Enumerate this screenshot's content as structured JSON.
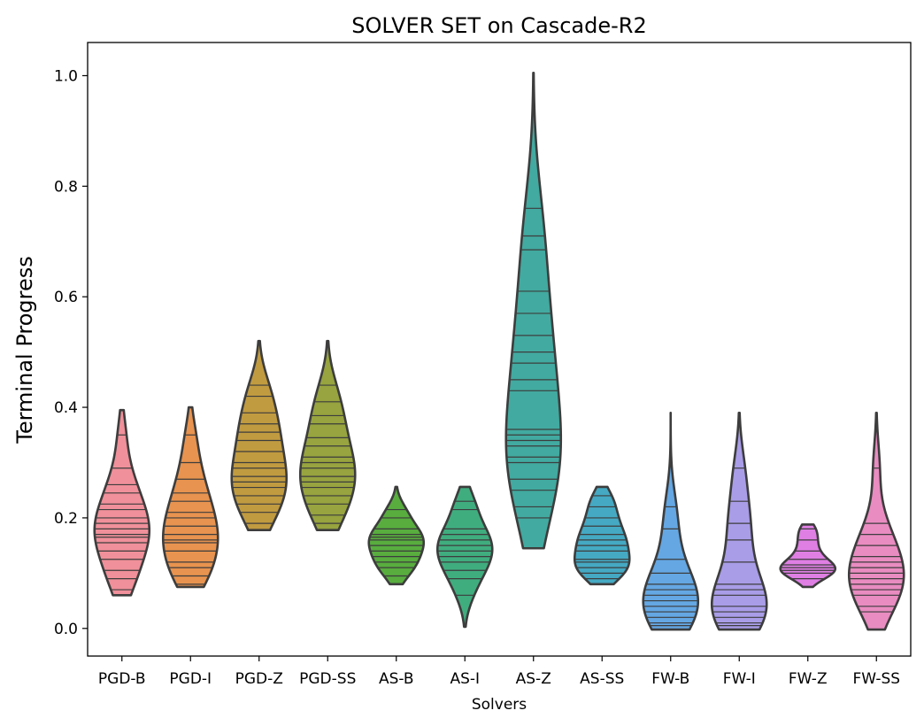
{
  "chart_data": {
    "type": "violin",
    "title": "SOLVER SET on Cascade-R2",
    "xlabel": "Solvers",
    "ylabel": "Terminal Progress",
    "ylim": [
      -0.05,
      1.06
    ],
    "yticks": [
      "0.0",
      "0.2",
      "0.4",
      "0.6",
      "0.8",
      "1.0"
    ],
    "inner": "stick",
    "categories": [
      "PGD-B",
      "PGD-I",
      "PGD-Z",
      "PGD-SS",
      "AS-B",
      "AS-I",
      "AS-Z",
      "AS-SS",
      "FW-B",
      "FW-I",
      "FW-Z",
      "FW-SS"
    ],
    "series": [
      {
        "color": "#f0909a",
        "range": [
          0.06,
          0.395
        ],
        "sticks": [
          0.07,
          0.09,
          0.105,
          0.125,
          0.14,
          0.155,
          0.165,
          0.17,
          0.18,
          0.19,
          0.2,
          0.215,
          0.225,
          0.245,
          0.26,
          0.29,
          0.35
        ]
      },
      {
        "color": "#e8934f",
        "range": [
          0.075,
          0.4
        ],
        "sticks": [
          0.08,
          0.095,
          0.11,
          0.12,
          0.14,
          0.155,
          0.16,
          0.17,
          0.185,
          0.2,
          0.21,
          0.23,
          0.245,
          0.27,
          0.3,
          0.35
        ]
      },
      {
        "color": "#c19b40",
        "range": [
          0.178,
          0.52
        ],
        "sticks": [
          0.19,
          0.21,
          0.225,
          0.24,
          0.255,
          0.265,
          0.275,
          0.29,
          0.3,
          0.32,
          0.34,
          0.355,
          0.37,
          0.39,
          0.42,
          0.44
        ]
      },
      {
        "color": "#97a43f",
        "range": [
          0.178,
          0.52
        ],
        "sticks": [
          0.19,
          0.205,
          0.225,
          0.24,
          0.255,
          0.265,
          0.275,
          0.29,
          0.3,
          0.31,
          0.33,
          0.345,
          0.37,
          0.385,
          0.41,
          0.44
        ]
      },
      {
        "color": "#58ad3e",
        "range": [
          0.08,
          0.256
        ],
        "sticks": [
          0.095,
          0.11,
          0.12,
          0.13,
          0.14,
          0.15,
          0.16,
          0.165,
          0.17,
          0.18,
          0.2,
          0.215
        ]
      },
      {
        "color": "#40ad7f",
        "range": [
          0.003,
          0.256
        ],
        "sticks": [
          0.06,
          0.09,
          0.105,
          0.12,
          0.13,
          0.14,
          0.15,
          0.16,
          0.17,
          0.18,
          0.215,
          0.23
        ]
      },
      {
        "color": "#42aaa0",
        "range": [
          0.145,
          1.005
        ],
        "sticks": [
          0.2,
          0.22,
          0.25,
          0.27,
          0.3,
          0.31,
          0.33,
          0.34,
          0.35,
          0.36,
          0.43,
          0.45,
          0.48,
          0.5,
          0.53,
          0.57,
          0.61,
          0.685,
          0.71,
          0.76
        ]
      },
      {
        "color": "#45a9c3",
        "range": [
          0.08,
          0.256
        ],
        "sticks": [
          0.09,
          0.1,
          0.11,
          0.12,
          0.125,
          0.14,
          0.15,
          0.16,
          0.17,
          0.185,
          0.2,
          0.22,
          0.24
        ]
      },
      {
        "color": "#64a7e3",
        "range": [
          -0.002,
          0.39
        ],
        "sticks": [
          0.005,
          0.01,
          0.02,
          0.03,
          0.04,
          0.05,
          0.06,
          0.07,
          0.08,
          0.1,
          0.125,
          0.18,
          0.22
        ]
      },
      {
        "color": "#a99de8",
        "range": [
          -0.002,
          0.39
        ],
        "sticks": [
          0.005,
          0.01,
          0.02,
          0.03,
          0.04,
          0.06,
          0.07,
          0.08,
          0.12,
          0.16,
          0.19,
          0.23,
          0.29
        ]
      },
      {
        "color": "#df7fe4",
        "range": [
          0.075,
          0.188
        ],
        "sticks": [
          0.09,
          0.1,
          0.105,
          0.11,
          0.115,
          0.125,
          0.14,
          0.16,
          0.18
        ]
      },
      {
        "color": "#e98cc1",
        "range": [
          -0.002,
          0.39
        ],
        "sticks": [
          0.03,
          0.04,
          0.06,
          0.07,
          0.08,
          0.09,
          0.1,
          0.11,
          0.12,
          0.13,
          0.15,
          0.17,
          0.19,
          0.29
        ]
      }
    ]
  }
}
